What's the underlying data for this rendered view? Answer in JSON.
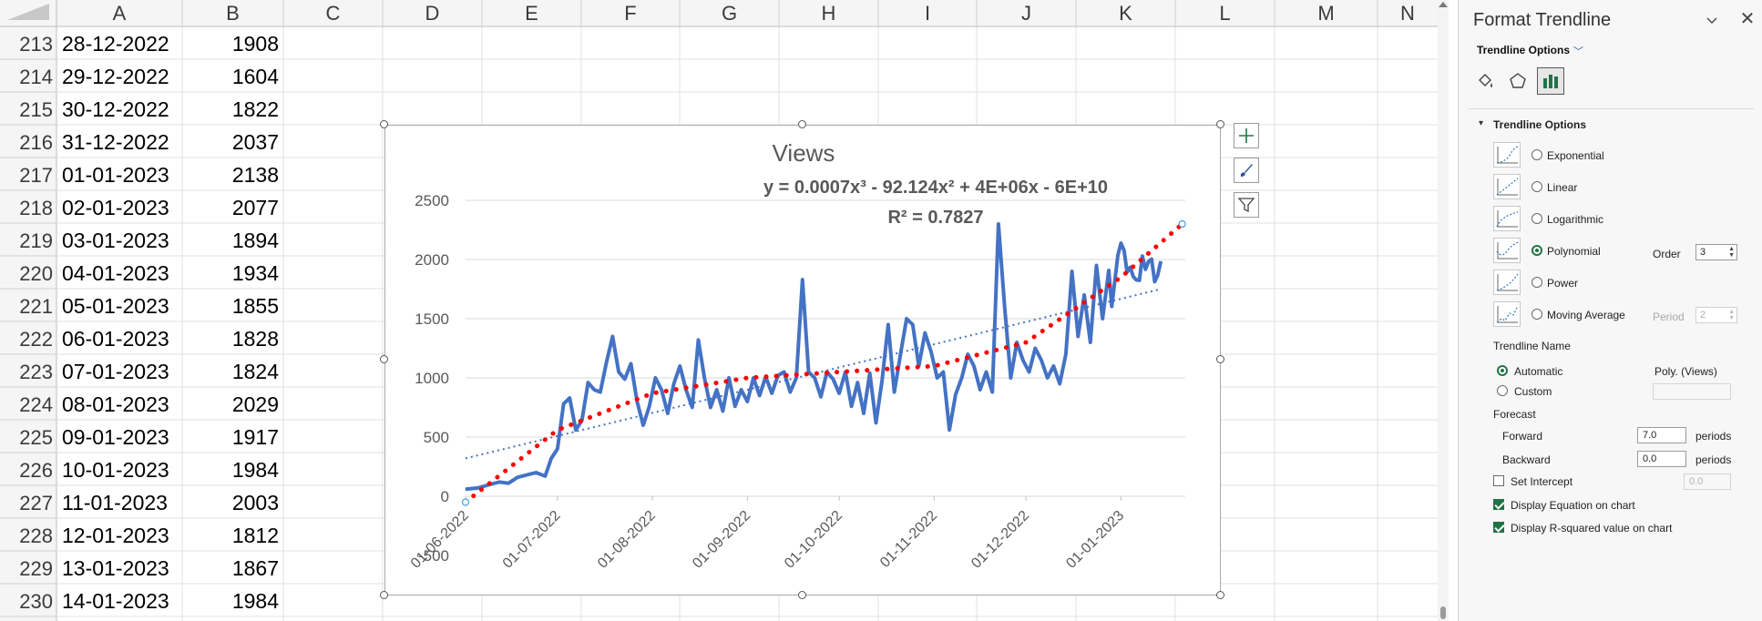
{
  "sheet": {
    "columns": [
      "A",
      "B",
      "C",
      "D",
      "E",
      "F",
      "G",
      "H",
      "I",
      "J",
      "K",
      "L",
      "M",
      "N"
    ],
    "rows": [
      {
        "num": "213",
        "date": "28-12-2022",
        "views": "1908"
      },
      {
        "num": "214",
        "date": "29-12-2022",
        "views": "1604"
      },
      {
        "num": "215",
        "date": "30-12-2022",
        "views": "1822"
      },
      {
        "num": "216",
        "date": "31-12-2022",
        "views": "2037"
      },
      {
        "num": "217",
        "date": "01-01-2023",
        "views": "2138"
      },
      {
        "num": "218",
        "date": "02-01-2023",
        "views": "2077"
      },
      {
        "num": "219",
        "date": "03-01-2023",
        "views": "1894"
      },
      {
        "num": "220",
        "date": "04-01-2023",
        "views": "1934"
      },
      {
        "num": "221",
        "date": "05-01-2023",
        "views": "1855"
      },
      {
        "num": "222",
        "date": "06-01-2023",
        "views": "1828"
      },
      {
        "num": "223",
        "date": "07-01-2023",
        "views": "1824"
      },
      {
        "num": "224",
        "date": "08-01-2023",
        "views": "2029"
      },
      {
        "num": "225",
        "date": "09-01-2023",
        "views": "1917"
      },
      {
        "num": "226",
        "date": "10-01-2023",
        "views": "1984"
      },
      {
        "num": "227",
        "date": "11-01-2023",
        "views": "2003"
      },
      {
        "num": "228",
        "date": "12-01-2023",
        "views": "1812"
      },
      {
        "num": "229",
        "date": "13-01-2023",
        "views": "1867"
      },
      {
        "num": "230",
        "date": "14-01-2023",
        "views": "1984"
      }
    ]
  },
  "chart_data": {
    "type": "line",
    "title": "Views",
    "equation": "y = 0.0007x³ - 92.124x² + 4E+06x - 6E+10",
    "r_squared": "R² = 0.7827",
    "y_ticks": [
      "2500",
      "2000",
      "1500",
      "1000",
      "500",
      "0",
      "-500"
    ],
    "x_ticks": [
      "01-06-2022",
      "01-07-2022",
      "01-08-2022",
      "01-09-2022",
      "01-10-2022",
      "01-11-2022",
      "01-12-2022",
      "01-01-2023"
    ],
    "ylim": [
      -500,
      2500
    ],
    "x_start": "2022-06-01",
    "x_end": "2023-01-22",
    "series": [
      {
        "values": [
          [
            "2022-06-01",
            60
          ],
          [
            "2022-06-05",
            70
          ],
          [
            "2022-06-09",
            100
          ],
          [
            "2022-06-12",
            120
          ],
          [
            "2022-06-15",
            110
          ],
          [
            "2022-06-18",
            160
          ],
          [
            "2022-06-21",
            180
          ],
          [
            "2022-06-24",
            200
          ],
          [
            "2022-06-27",
            170
          ],
          [
            "2022-06-29",
            320
          ],
          [
            "2022-07-01",
            400
          ],
          [
            "2022-07-03",
            780
          ],
          [
            "2022-07-05",
            830
          ],
          [
            "2022-07-07",
            560
          ],
          [
            "2022-07-09",
            640
          ],
          [
            "2022-07-11",
            960
          ],
          [
            "2022-07-13",
            900
          ],
          [
            "2022-07-15",
            880
          ],
          [
            "2022-07-17",
            1130
          ],
          [
            "2022-07-19",
            1350
          ],
          [
            "2022-07-21",
            1050
          ],
          [
            "2022-07-23",
            990
          ],
          [
            "2022-07-25",
            1120
          ],
          [
            "2022-07-27",
            800
          ],
          [
            "2022-07-29",
            600
          ],
          [
            "2022-07-31",
            760
          ],
          [
            "2022-08-02",
            1000
          ],
          [
            "2022-08-04",
            900
          ],
          [
            "2022-08-06",
            700
          ],
          [
            "2022-08-08",
            950
          ],
          [
            "2022-08-10",
            1100
          ],
          [
            "2022-08-12",
            900
          ],
          [
            "2022-08-14",
            750
          ],
          [
            "2022-08-16",
            1320
          ],
          [
            "2022-08-18",
            1000
          ],
          [
            "2022-08-20",
            750
          ],
          [
            "2022-08-22",
            900
          ],
          [
            "2022-08-24",
            720
          ],
          [
            "2022-08-26",
            1000
          ],
          [
            "2022-08-28",
            760
          ],
          [
            "2022-08-30",
            900
          ],
          [
            "2022-09-01",
            800
          ],
          [
            "2022-09-03",
            1000
          ],
          [
            "2022-09-05",
            850
          ],
          [
            "2022-09-07",
            1010
          ],
          [
            "2022-09-09",
            870
          ],
          [
            "2022-09-11",
            1020
          ],
          [
            "2022-09-13",
            1050
          ],
          [
            "2022-09-15",
            880
          ],
          [
            "2022-09-17",
            1000
          ],
          [
            "2022-09-19",
            1830
          ],
          [
            "2022-09-21",
            1050
          ],
          [
            "2022-09-23",
            1000
          ],
          [
            "2022-09-25",
            840
          ],
          [
            "2022-09-27",
            1050
          ],
          [
            "2022-09-29",
            990
          ],
          [
            "2022-10-01",
            870
          ],
          [
            "2022-10-03",
            1050
          ],
          [
            "2022-10-05",
            760
          ],
          [
            "2022-10-07",
            960
          ],
          [
            "2022-10-09",
            700
          ],
          [
            "2022-10-11",
            1040
          ],
          [
            "2022-10-13",
            620
          ],
          [
            "2022-10-15",
            980
          ],
          [
            "2022-10-17",
            1450
          ],
          [
            "2022-10-19",
            880
          ],
          [
            "2022-10-21",
            1200
          ],
          [
            "2022-10-23",
            1500
          ],
          [
            "2022-10-25",
            1450
          ],
          [
            "2022-10-27",
            1100
          ],
          [
            "2022-10-29",
            1380
          ],
          [
            "2022-10-31",
            1220
          ],
          [
            "2022-11-02",
            1000
          ],
          [
            "2022-11-04",
            1050
          ],
          [
            "2022-11-06",
            560
          ],
          [
            "2022-11-08",
            860
          ],
          [
            "2022-11-10",
            1000
          ],
          [
            "2022-11-12",
            1200
          ],
          [
            "2022-11-14",
            1100
          ],
          [
            "2022-11-16",
            900
          ],
          [
            "2022-11-18",
            1050
          ],
          [
            "2022-11-20",
            880
          ],
          [
            "2022-11-22",
            2300
          ],
          [
            "2022-11-24",
            1600
          ],
          [
            "2022-11-26",
            1000
          ],
          [
            "2022-11-28",
            1300
          ],
          [
            "2022-11-30",
            1150
          ],
          [
            "2022-12-02",
            1050
          ],
          [
            "2022-12-04",
            1250
          ],
          [
            "2022-12-06",
            1150
          ],
          [
            "2022-12-08",
            1000
          ],
          [
            "2022-12-10",
            1100
          ],
          [
            "2022-12-12",
            950
          ],
          [
            "2022-12-14",
            1200
          ],
          [
            "2022-12-16",
            1900
          ],
          [
            "2022-12-18",
            1350
          ],
          [
            "2022-12-20",
            1700
          ],
          [
            "2022-12-22",
            1300
          ],
          [
            "2022-12-24",
            1950
          ],
          [
            "2022-12-26",
            1500
          ],
          [
            "2022-12-28",
            1908
          ],
          [
            "2022-12-29",
            1604
          ],
          [
            "2022-12-30",
            1822
          ],
          [
            "2022-12-31",
            2037
          ],
          [
            "2023-01-01",
            2138
          ],
          [
            "2023-01-02",
            2077
          ],
          [
            "2023-01-03",
            1894
          ],
          [
            "2023-01-04",
            1934
          ],
          [
            "2023-01-05",
            1855
          ],
          [
            "2023-01-06",
            1828
          ],
          [
            "2023-01-07",
            1824
          ],
          [
            "2023-01-08",
            2029
          ],
          [
            "2023-01-09",
            1917
          ],
          [
            "2023-01-10",
            1984
          ],
          [
            "2023-01-11",
            2003
          ],
          [
            "2023-01-12",
            1812
          ],
          [
            "2023-01-13",
            1867
          ],
          [
            "2023-01-14",
            1984
          ]
        ],
        "color": "#4472c4"
      }
    ],
    "trendlines": [
      {
        "kind": "polynomial",
        "order": 3,
        "style": "dotted-thick",
        "color": "#ff0000",
        "points": [
          [
            "2022-06-01",
            -50
          ],
          [
            "2022-07-01",
            560
          ],
          [
            "2022-08-01",
            870
          ],
          [
            "2022-09-01",
            1000
          ],
          [
            "2022-10-01",
            1050
          ],
          [
            "2022-11-01",
            1100
          ],
          [
            "2022-12-01",
            1300
          ],
          [
            "2023-01-01",
            1850
          ],
          [
            "2023-01-21",
            2300
          ]
        ]
      },
      {
        "kind": "linear",
        "style": "dotted-thin",
        "color": "#4472c4",
        "points": [
          [
            "2022-06-01",
            320
          ],
          [
            "2023-01-14",
            1750
          ]
        ]
      }
    ]
  },
  "tools": {
    "add_element_icon": "plus-icon",
    "style_icon": "brush-icon",
    "filter_icon": "funnel-icon"
  },
  "pane": {
    "title": "Format Trendline",
    "dropdown_label": "Trendline Options",
    "tabs": [
      "fill-line-icon",
      "effects-icon",
      "trendline-options-icon"
    ],
    "section_title": "Trendline Options",
    "types": [
      {
        "label": "Exponential",
        "selected": false
      },
      {
        "label": "Linear",
        "selected": false
      },
      {
        "label": "Logarithmic",
        "selected": false
      },
      {
        "label": "Polynomial",
        "selected": true
      },
      {
        "label": "Power",
        "selected": false
      },
      {
        "label": "Moving Average",
        "selected": false
      }
    ],
    "order_label": "Order",
    "order_value": "3",
    "period_label": "Period",
    "period_value": "2",
    "name_heading": "Trendline Name",
    "name_automatic": "Automatic",
    "name_automatic_value": "Poly. (Views)",
    "name_custom": "Custom",
    "forecast_heading": "Forecast",
    "forward_label": "Forward",
    "forward_value": "7.0",
    "backward_label": "Backward",
    "backward_value": "0.0",
    "periods_label": "periods",
    "set_intercept_label": "Set Intercept",
    "set_intercept_value": "0.0",
    "display_equation_label": "Display Equation on chart",
    "display_rsq_label": "Display R-squared value on chart",
    "accent_color": "#217346"
  }
}
